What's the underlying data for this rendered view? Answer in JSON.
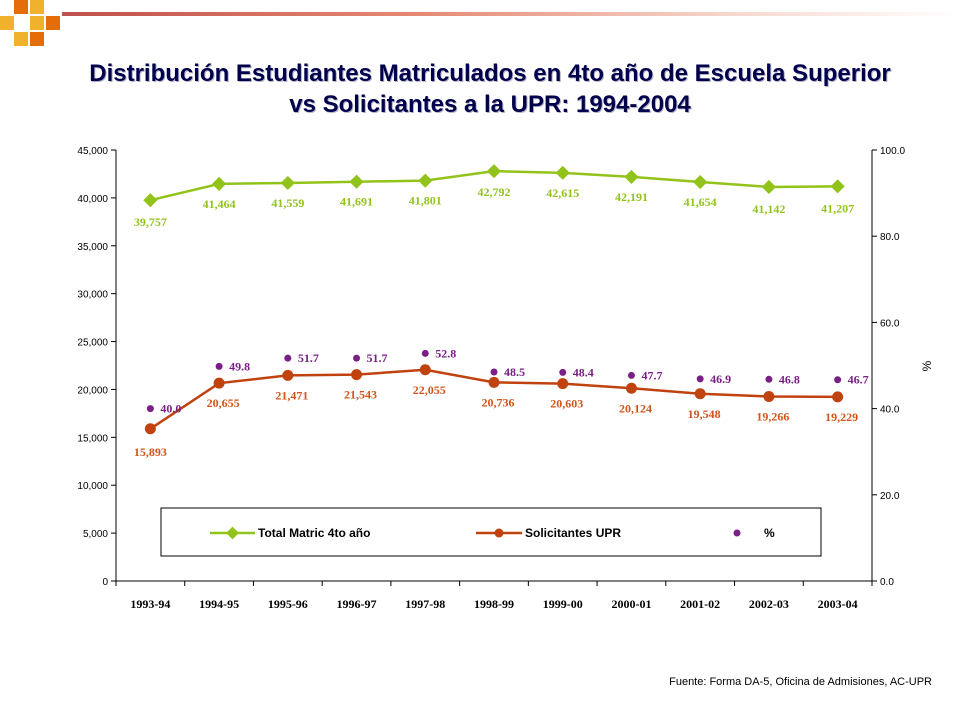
{
  "title_lines": [
    "Distribución Estudiantes Matriculados en 4to año de Escuela Superior",
    "vs Solicitantes a la UPR: 1994-2004"
  ],
  "source": "Fuente: Forma DA-5, Oficina de Admisiones, AC-UPR",
  "colors": {
    "title": "#00004d",
    "deco_orange": "#e46c0a",
    "deco_gold": "#f0b12c",
    "series_total": "#92c31a",
    "series_total_label": "#92c31a",
    "series_solicitantes": "#c0420f",
    "series_solicitantes_label": "#d2541b",
    "series_pct": "#7a1f86"
  },
  "chart_data": {
    "type": "line",
    "categories": [
      "1993-94",
      "1994-95",
      "1995-96",
      "1996-97",
      "1997-98",
      "1998-99",
      "1999-00",
      "2000-01",
      "2001-02",
      "2002-03",
      "2003-04"
    ],
    "series": [
      {
        "name": "Total Matric 4to año",
        "axis": "left",
        "values": [
          39757,
          41464,
          41559,
          41691,
          41801,
          42792,
          42615,
          42191,
          41654,
          41142,
          41207
        ],
        "labels": [
          "39,757",
          "41,464",
          "41,559",
          "41,691",
          "41,801",
          "42,792",
          "42,615",
          "42,191",
          "41,654",
          "41,142",
          "41,207"
        ]
      },
      {
        "name": "Solicitantes UPR",
        "axis": "left",
        "values": [
          15893,
          20655,
          21471,
          21543,
          22055,
          20736,
          20603,
          20124,
          19548,
          19266,
          19229
        ],
        "labels": [
          "15,893",
          "20,655",
          "21,471",
          "21,543",
          "22,055",
          "20,736",
          "20,603",
          "20,124",
          "19,548",
          "19,266",
          "19,229"
        ]
      },
      {
        "name": "%",
        "axis": "right",
        "values": [
          40.0,
          49.8,
          51.7,
          51.7,
          52.8,
          48.5,
          48.4,
          47.7,
          46.9,
          46.8,
          46.7
        ],
        "labels": [
          "40.0",
          "49.8",
          "51.7",
          "51.7",
          "52.8",
          "48.5",
          "48.4",
          "47.7",
          "46.9",
          "46.8",
          "46.7"
        ]
      }
    ],
    "y_left": {
      "lim": [
        0,
        45000
      ],
      "ticks": [
        0,
        5000,
        10000,
        15000,
        20000,
        25000,
        30000,
        35000,
        40000,
        45000
      ],
      "tick_labels": [
        "0",
        "5,000",
        "10,000",
        "15,000",
        "20,000",
        "25,000",
        "30,000",
        "35,000",
        "40,000",
        "45,000"
      ]
    },
    "y_right": {
      "lim": [
        0,
        100
      ],
      "ticks": [
        0,
        20,
        40,
        60,
        80,
        100
      ],
      "tick_labels": [
        "0.0",
        "20.0",
        "40.0",
        "60.0",
        "80.0",
        "100.0"
      ],
      "label": "%"
    },
    "legend": {
      "placement": "bottom-inside",
      "entries": [
        "Total Matric 4to año",
        "Solicitantes UPR",
        "%"
      ]
    },
    "grid": false
  }
}
